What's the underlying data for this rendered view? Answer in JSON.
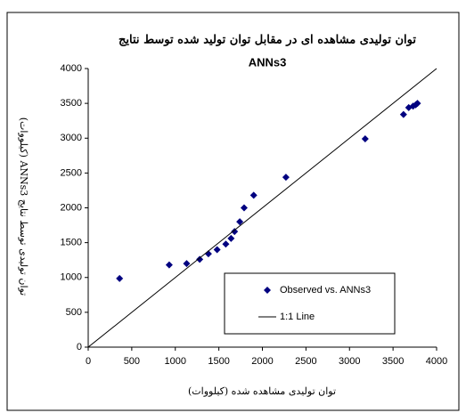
{
  "chart_data": {
    "type": "scatter",
    "title": "توان تولیدی مشاهده ای در مقابل توان تولید شده توسط نتایج",
    "subtitle": "ANNs3",
    "x_label": "توان تولیدی مشاهده شده (کیلووات)",
    "y_label": "توان تولیدی توسط نتایج ANNs3 (کیلووات)",
    "xlim": [
      0,
      4000
    ],
    "ylim": [
      0,
      4000
    ],
    "xticks": [
      0,
      500,
      1000,
      1500,
      2000,
      2500,
      3000,
      3500,
      4000
    ],
    "yticks": [
      0,
      500,
      1000,
      1500,
      2000,
      2500,
      3000,
      3500,
      4000
    ],
    "series": [
      {
        "name": "Observed vs. ANNs3",
        "color": "#000080",
        "mode": "markers",
        "x": [
          360,
          930,
          1130,
          1280,
          1380,
          1480,
          1580,
          1640,
          1680,
          1740,
          1790,
          1900,
          2270,
          3180,
          3620,
          3680,
          3730,
          3760,
          3780
        ],
        "values": [
          985,
          1180,
          1200,
          1260,
          1340,
          1400,
          1480,
          1560,
          1660,
          1800,
          2000,
          2180,
          2440,
          2990,
          3340,
          3440,
          3460,
          3480,
          3500
        ]
      },
      {
        "name": "1:1 Line",
        "color": "#000000",
        "mode": "line",
        "x": [
          0,
          4000
        ],
        "values": [
          0,
          4000
        ]
      }
    ]
  }
}
